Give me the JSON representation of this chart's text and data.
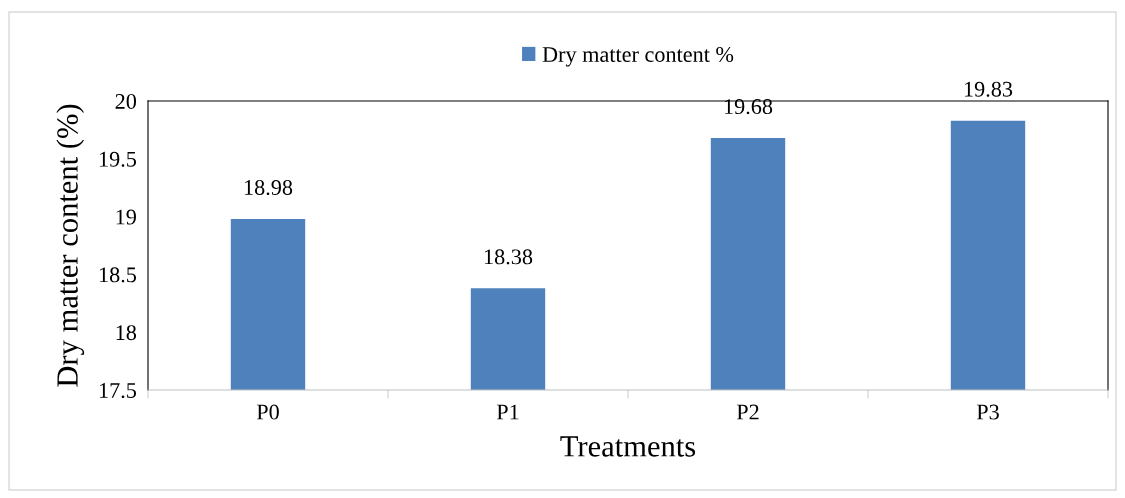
{
  "chart_data": {
    "type": "bar",
    "xlabel": "Treatments",
    "ylabel": "Dry matter content (%)",
    "categories": [
      "P0",
      "P1",
      "P2",
      "P3"
    ],
    "series": [
      {
        "name": "Dry matter content %",
        "color": "#4f81bd",
        "values": [
          18.98,
          18.38,
          19.68,
          19.83
        ]
      }
    ],
    "ylim": [
      17.5,
      20
    ],
    "yticks": [
      17.5,
      18,
      18.5,
      19,
      19.5,
      20
    ],
    "data_labels": true,
    "legend": "top",
    "grid": false
  }
}
